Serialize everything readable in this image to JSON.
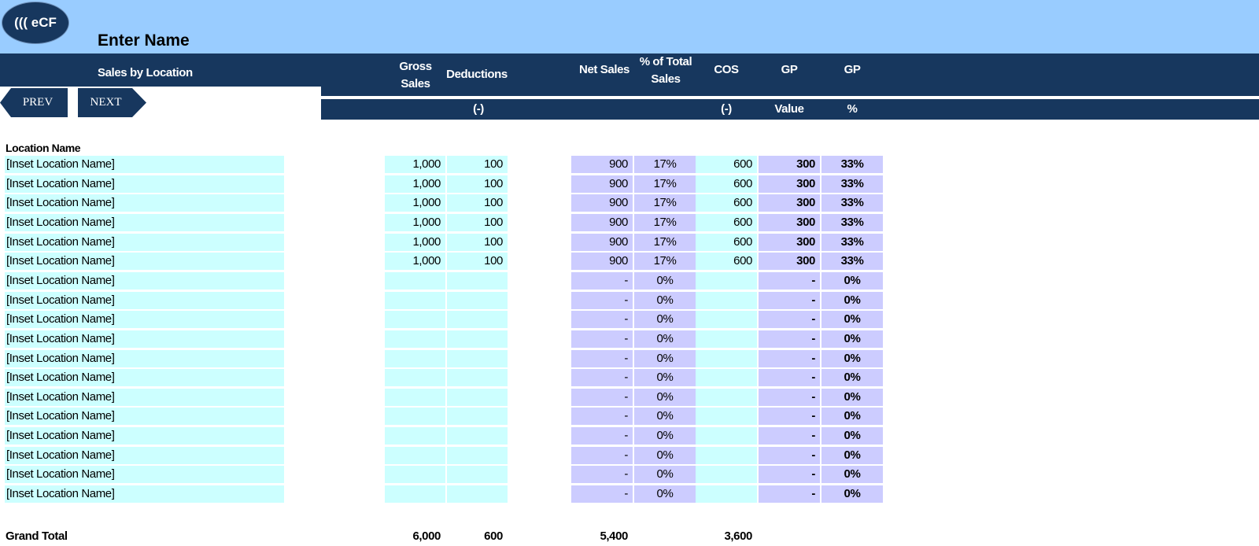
{
  "logo": {
    "text": "((( eCF"
  },
  "title": "Enter Name",
  "header": {
    "section_label": "Sales by Location",
    "columns": {
      "gross_sales": "Gross Sales",
      "deductions": "Deductions",
      "net_sales": "Net Sales",
      "pct_total_sales": "% of Total Sales",
      "cos": "COS",
      "gp_value": "GP",
      "gp_pct": "GP"
    },
    "subcolumns": {
      "deductions": "(-)",
      "cos": "(-)",
      "gp_value": "Value",
      "gp_pct": "%"
    }
  },
  "nav": {
    "prev_label": "PREV",
    "next_label": "NEXT"
  },
  "location_heading": "Location Name",
  "rows": [
    {
      "name": "[Inset Location Name]",
      "gross": "1,000",
      "ded": "100",
      "net": "900",
      "pct": "17%",
      "cos": "600",
      "gpv": "300",
      "gpp": "33%"
    },
    {
      "name": "[Inset Location Name]",
      "gross": "1,000",
      "ded": "100",
      "net": "900",
      "pct": "17%",
      "cos": "600",
      "gpv": "300",
      "gpp": "33%"
    },
    {
      "name": "[Inset Location Name]",
      "gross": "1,000",
      "ded": "100",
      "net": "900",
      "pct": "17%",
      "cos": "600",
      "gpv": "300",
      "gpp": "33%"
    },
    {
      "name": "[Inset Location Name]",
      "gross": "1,000",
      "ded": "100",
      "net": "900",
      "pct": "17%",
      "cos": "600",
      "gpv": "300",
      "gpp": "33%"
    },
    {
      "name": "[Inset Location Name]",
      "gross": "1,000",
      "ded": "100",
      "net": "900",
      "pct": "17%",
      "cos": "600",
      "gpv": "300",
      "gpp": "33%"
    },
    {
      "name": "[Inset Location Name]",
      "gross": "1,000",
      "ded": "100",
      "net": "900",
      "pct": "17%",
      "cos": "600",
      "gpv": "300",
      "gpp": "33%"
    },
    {
      "name": "[Inset Location Name]",
      "gross": "",
      "ded": "",
      "net": "-",
      "pct": "0%",
      "cos": "",
      "gpv": "-",
      "gpp": "0%"
    },
    {
      "name": "[Inset Location Name]",
      "gross": "",
      "ded": "",
      "net": "-",
      "pct": "0%",
      "cos": "",
      "gpv": "-",
      "gpp": "0%"
    },
    {
      "name": "[Inset Location Name]",
      "gross": "",
      "ded": "",
      "net": "-",
      "pct": "0%",
      "cos": "",
      "gpv": "-",
      "gpp": "0%"
    },
    {
      "name": "[Inset Location Name]",
      "gross": "",
      "ded": "",
      "net": "-",
      "pct": "0%",
      "cos": "",
      "gpv": "-",
      "gpp": "0%"
    },
    {
      "name": "[Inset Location Name]",
      "gross": "",
      "ded": "",
      "net": "-",
      "pct": "0%",
      "cos": "",
      "gpv": "-",
      "gpp": "0%"
    },
    {
      "name": "[Inset Location Name]",
      "gross": "",
      "ded": "",
      "net": "-",
      "pct": "0%",
      "cos": "",
      "gpv": "-",
      "gpp": "0%"
    },
    {
      "name": "[Inset Location Name]",
      "gross": "",
      "ded": "",
      "net": "-",
      "pct": "0%",
      "cos": "",
      "gpv": "-",
      "gpp": "0%"
    },
    {
      "name": "[Inset Location Name]",
      "gross": "",
      "ded": "",
      "net": "-",
      "pct": "0%",
      "cos": "",
      "gpv": "-",
      "gpp": "0%"
    },
    {
      "name": "[Inset Location Name]",
      "gross": "",
      "ded": "",
      "net": "-",
      "pct": "0%",
      "cos": "",
      "gpv": "-",
      "gpp": "0%"
    },
    {
      "name": "[Inset Location Name]",
      "gross": "",
      "ded": "",
      "net": "-",
      "pct": "0%",
      "cos": "",
      "gpv": "-",
      "gpp": "0%"
    },
    {
      "name": "[Inset Location Name]",
      "gross": "",
      "ded": "",
      "net": "-",
      "pct": "0%",
      "cos": "",
      "gpv": "-",
      "gpp": "0%"
    },
    {
      "name": "[Inset Location Name]",
      "gross": "",
      "ded": "",
      "net": "-",
      "pct": "0%",
      "cos": "",
      "gpv": "-",
      "gpp": "0%"
    }
  ],
  "grand_total": {
    "label": "Grand Total",
    "gross": "6,000",
    "ded": "600",
    "net": "5,400",
    "cos": "3,600"
  },
  "colors": {
    "banner": "#99ccff",
    "header": "#17375e",
    "input_cell": "#ccffff",
    "calc_cell": "#ccccff"
  }
}
